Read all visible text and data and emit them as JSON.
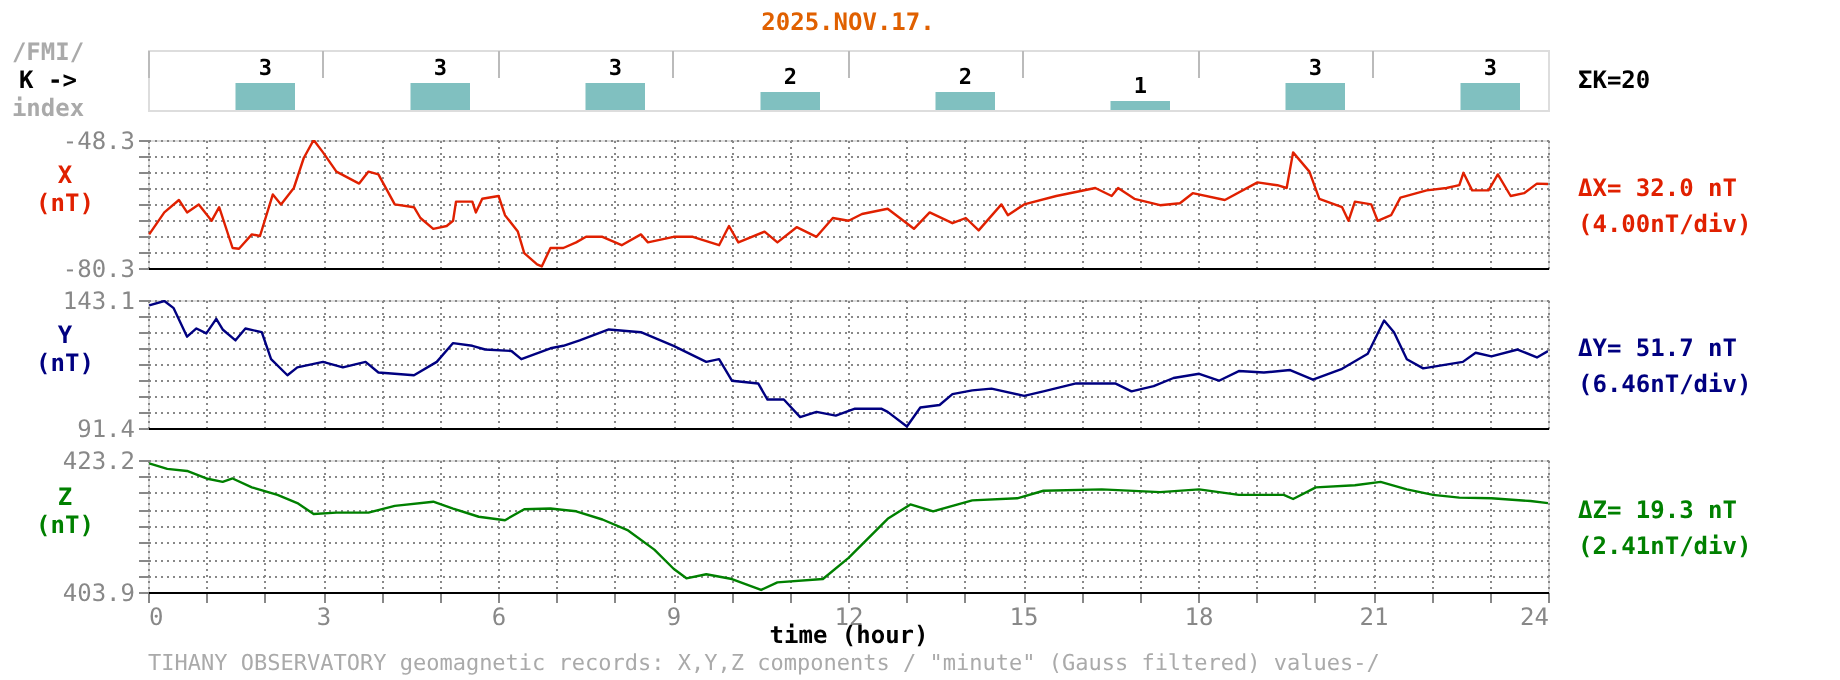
{
  "chart_data": [
    {
      "type": "bar",
      "title": "2025.NOV.17.",
      "ylabel": "K ->",
      "categories": [
        null,
        null,
        null,
        null,
        null,
        null,
        null,
        null
      ],
      "values": [
        3,
        3,
        3,
        2,
        2,
        1,
        3,
        3
      ],
      "color": "#80c0c0",
      "data_labels": true,
      "tick_labels": false,
      "grid": "x",
      "annotations": [
        "/FMI/",
        "index",
        "ΣK=20"
      ]
    },
    {
      "type": "line",
      "ylabel": "X (nT)",
      "x": [
        0.02,
        0.28,
        0.53,
        0.67,
        0.87,
        1.09,
        1.22,
        1.45,
        1.56,
        1.78,
        1.92,
        2.14,
        2.28,
        2.5,
        2.67,
        2.84,
        3.0,
        3.23,
        3.62,
        3.78,
        3.95,
        4.23,
        4.56,
        4.67,
        4.89,
        5.12,
        5.23,
        5.28,
        5.56,
        5.62,
        5.73,
        6.01,
        6.12,
        6.34,
        6.45,
        6.67,
        6.75,
        6.9,
        7.12,
        7.34,
        7.51,
        7.79,
        8.12,
        8.45,
        8.57,
        9.01,
        9.34,
        9.79,
        9.96,
        10.12,
        10.57,
        10.79,
        11.12,
        11.46,
        11.74,
        12.01,
        12.24,
        12.68,
        13.13,
        13.4,
        13.79,
        14.02,
        14.24,
        14.63,
        14.74,
        15.02,
        15.57,
        16.24,
        16.52,
        16.63,
        16.91,
        17.35,
        17.69,
        17.91,
        18.46,
        19.02,
        19.36,
        19.52,
        19.63,
        19.91,
        20.08,
        20.47,
        20.58,
        20.69,
        20.97,
        21.08,
        21.31,
        21.47,
        21.92,
        22.26,
        22.48,
        22.55,
        22.7,
        22.98,
        23.14,
        23.36,
        23.59,
        23.81,
        24.0
      ],
      "series": [
        {
          "color": "#e02000",
          "values": [
            -71.9,
            -66.4,
            -63.3,
            -66.4,
            -64.4,
            -68.5,
            -65.1,
            -75.3,
            -75.5,
            -71.9,
            -72.3,
            -61.9,
            -64.4,
            -60.3,
            -52.8,
            -48.3,
            -51.4,
            -56.2,
            -59.2,
            -56.2,
            -56.9,
            -64.4,
            -65.1,
            -67.8,
            -70.5,
            -69.8,
            -68.5,
            -63.7,
            -63.7,
            -66.4,
            -63.0,
            -62.3,
            -67.1,
            -71.2,
            -76.6,
            -79.4,
            -79.9,
            -75.3,
            -75.3,
            -73.9,
            -72.5,
            -72.5,
            -74.6,
            -71.9,
            -73.9,
            -72.5,
            -72.5,
            -74.6,
            -69.8,
            -73.9,
            -71.2,
            -73.9,
            -70.1,
            -72.5,
            -67.8,
            -68.5,
            -66.8,
            -65.5,
            -70.5,
            -66.4,
            -69.1,
            -67.8,
            -70.9,
            -64.4,
            -67.1,
            -64.4,
            -62.3,
            -60.3,
            -62.3,
            -60.3,
            -63.0,
            -64.6,
            -64.1,
            -61.6,
            -63.3,
            -58.9,
            -59.6,
            -60.3,
            -51.4,
            -56.2,
            -63.0,
            -65.1,
            -68.5,
            -63.7,
            -64.4,
            -68.5,
            -67.1,
            -62.7,
            -60.9,
            -60.3,
            -59.6,
            -56.5,
            -60.9,
            -60.9,
            -56.9,
            -62.3,
            -61.6,
            -59.2,
            -59.3
          ]
        }
      ],
      "xlim": [
        0,
        24
      ],
      "xticks": [
        0,
        {
          "value": 1,
          "label": null
        },
        {
          "value": 2,
          "label": null
        },
        3,
        {
          "value": 4,
          "label": null
        },
        {
          "value": 5,
          "label": null
        },
        6,
        {
          "value": 7,
          "label": null
        },
        {
          "value": 8,
          "label": null
        },
        9,
        {
          "value": 10,
          "label": null
        },
        {
          "value": 11,
          "label": null
        },
        12,
        {
          "value": 13,
          "label": null
        },
        {
          "value": 14,
          "label": null
        },
        15,
        {
          "value": 16,
          "label": null
        },
        {
          "value": 17,
          "label": null
        },
        18,
        {
          "value": 19,
          "label": null
        },
        {
          "value": 20,
          "label": null
        },
        21,
        {
          "value": 22,
          "label": null
        },
        {
          "value": 23,
          "label": null
        },
        24
      ],
      "ylim": [
        -80.3,
        -48.3
      ],
      "yticks": [
        -80.3,
        {
          "value": -76.3,
          "label": null
        },
        {
          "value": -72.3,
          "label": null
        },
        {
          "value": -68.3,
          "label": null
        },
        {
          "value": -64.3,
          "label": null
        },
        {
          "value": -60.3,
          "label": null
        },
        {
          "value": -56.3,
          "label": null
        },
        {
          "value": -52.3,
          "label": null
        },
        -48.3
      ],
      "grid": true,
      "tick_labels": "y",
      "annotations": [
        "ΔX= 32.0 nT",
        "(4.00nT/div)"
      ]
    },
    {
      "type": "line",
      "ylabel": "Y (nT)",
      "x": [
        0.02,
        0.28,
        0.44,
        0.67,
        0.83,
        1.0,
        1.17,
        1.28,
        1.5,
        1.67,
        1.95,
        2.11,
        2.39,
        2.56,
        3.0,
        3.34,
        3.73,
        3.95,
        4.56,
        4.95,
        5.23,
        5.56,
        5.78,
        6.23,
        6.4,
        6.9,
        7.12,
        7.4,
        7.9,
        8.45,
        9.01,
        9.57,
        9.79,
        10.01,
        10.46,
        10.62,
        10.9,
        11.18,
        11.46,
        11.79,
        12.12,
        12.57,
        12.68,
        13.01,
        13.24,
        13.57,
        13.79,
        14.13,
        14.46,
        15.02,
        15.35,
        15.91,
        16.58,
        16.86,
        17.24,
        17.58,
        18.02,
        18.36,
        18.7,
        19.13,
        19.58,
        19.97,
        20.47,
        20.91,
        21.19,
        21.36,
        21.58,
        21.86,
        22.54,
        22.76,
        23.03,
        23.48,
        23.81,
        24.0
      ],
      "series": [
        {
          "color": "#000080",
          "values": [
            140.9,
            142.7,
            139.8,
            128.3,
            131.6,
            129.6,
            135.5,
            131.2,
            126.8,
            131.6,
            130.1,
            119.2,
            112.7,
            115.9,
            118.1,
            115.9,
            118.1,
            113.8,
            112.7,
            118.1,
            125.7,
            124.6,
            123.1,
            122.5,
            119.2,
            123.6,
            124.6,
            126.8,
            131.2,
            130.1,
            124.6,
            118.1,
            119.2,
            110.5,
            109.4,
            102.9,
            102.9,
            95.8,
            97.9,
            96.4,
            99.2,
            99.2,
            97.9,
            92.0,
            99.7,
            100.7,
            105.1,
            106.6,
            107.3,
            104.4,
            106.2,
            109.4,
            109.4,
            106.2,
            108.3,
            111.6,
            113.3,
            110.5,
            114.4,
            113.8,
            114.8,
            110.9,
            115.3,
            121.4,
            134.8,
            130.1,
            119.2,
            115.5,
            118.1,
            121.8,
            120.3,
            123.1,
            119.9,
            122.5
          ]
        }
      ],
      "xlim": [
        0,
        24
      ],
      "xticks": [
        0,
        {
          "value": 1,
          "label": null
        },
        {
          "value": 2,
          "label": null
        },
        3,
        {
          "value": 4,
          "label": null
        },
        {
          "value": 5,
          "label": null
        },
        6,
        {
          "value": 7,
          "label": null
        },
        {
          "value": 8,
          "label": null
        },
        9,
        {
          "value": 10,
          "label": null
        },
        {
          "value": 11,
          "label": null
        },
        12,
        {
          "value": 13,
          "label": null
        },
        {
          "value": 14,
          "label": null
        },
        15,
        {
          "value": 16,
          "label": null
        },
        {
          "value": 17,
          "label": null
        },
        18,
        {
          "value": 19,
          "label": null
        },
        {
          "value": 20,
          "label": null
        },
        21,
        {
          "value": 22,
          "label": null
        },
        {
          "value": 23,
          "label": null
        },
        24
      ],
      "ylim": [
        91.4,
        143.1
      ],
      "yticks": [
        91.4,
        {
          "value": 97.9,
          "label": null
        },
        {
          "value": 104.3,
          "label": null
        },
        {
          "value": 110.8,
          "label": null
        },
        {
          "value": 117.3,
          "label": null
        },
        {
          "value": 123.7,
          "label": null
        },
        {
          "value": 130.2,
          "label": null
        },
        {
          "value": 136.6,
          "label": null
        },
        143.1
      ],
      "grid": true,
      "tick_labels": "y",
      "annotations": [
        "ΔY= 51.7 nT",
        "(6.46nT/div)"
      ]
    },
    {
      "type": "line",
      "ylabel": "Z (nT)",
      "xlabel": "time (hour)",
      "x": [
        0.02,
        0.33,
        0.67,
        1.0,
        1.28,
        1.45,
        1.78,
        2.22,
        2.56,
        2.84,
        3.23,
        3.78,
        4.23,
        4.89,
        5.23,
        5.67,
        6.12,
        6.45,
        6.9,
        7.34,
        7.79,
        8.23,
        8.68,
        9.01,
        9.23,
        9.57,
        10.01,
        10.51,
        10.79,
        11.57,
        12.01,
        12.68,
        13.07,
        13.46,
        14.13,
        14.9,
        15.35,
        16.35,
        17.35,
        18.02,
        18.7,
        19.47,
        19.63,
        20.02,
        20.69,
        21.13,
        21.58,
        22.03,
        22.48,
        23.03,
        23.7,
        24.0
      ],
      "series": [
        {
          "color": "#008000",
          "values": [
            422.7,
            421.9,
            421.6,
            420.5,
            420.0,
            420.5,
            419.2,
            418.1,
            416.9,
            415.3,
            415.5,
            415.5,
            416.5,
            417.1,
            416.1,
            414.9,
            414.4,
            416.0,
            416.1,
            415.7,
            414.5,
            412.9,
            410.1,
            407.3,
            405.9,
            406.5,
            405.8,
            404.2,
            405.3,
            405.8,
            408.9,
            414.6,
            416.7,
            415.7,
            417.3,
            417.6,
            418.7,
            418.9,
            418.5,
            418.9,
            418.1,
            418.1,
            417.5,
            419.2,
            419.5,
            420.0,
            418.9,
            418.1,
            417.7,
            417.6,
            417.2,
            416.9
          ]
        }
      ],
      "xlim": [
        0,
        24
      ],
      "xticks": [
        0,
        {
          "value": 1,
          "label": null
        },
        {
          "value": 2,
          "label": null
        },
        3,
        {
          "value": 4,
          "label": null
        },
        {
          "value": 5,
          "label": null
        },
        6,
        {
          "value": 7,
          "label": null
        },
        {
          "value": 8,
          "label": null
        },
        9,
        {
          "value": 10,
          "label": null
        },
        {
          "value": 11,
          "label": null
        },
        12,
        {
          "value": 13,
          "label": null
        },
        {
          "value": 14,
          "label": null
        },
        15,
        {
          "value": 16,
          "label": null
        },
        {
          "value": 17,
          "label": null
        },
        18,
        {
          "value": 19,
          "label": null
        },
        {
          "value": 20,
          "label": null
        },
        21,
        {
          "value": 22,
          "label": null
        },
        {
          "value": 23,
          "label": null
        },
        24
      ],
      "ylim": [
        403.9,
        423.2
      ],
      "yticks": [
        403.9,
        {
          "value": 406.3,
          "label": null
        },
        {
          "value": 408.7,
          "label": null
        },
        {
          "value": 411.1,
          "label": null
        },
        {
          "value": 413.5,
          "label": null
        },
        {
          "value": 416.0,
          "label": null
        },
        {
          "value": 418.4,
          "label": null
        },
        {
          "value": 420.8,
          "label": null
        },
        423.2
      ],
      "grid": true,
      "annotations": [
        "ΔZ= 19.3 nT",
        "(2.41nT/div)",
        "TIHANY OBSERVATORY   geomagnetic records:  X,Y,Z  components   / \"minute\" (Gauss filtered) values-/"
      ]
    }
  ]
}
